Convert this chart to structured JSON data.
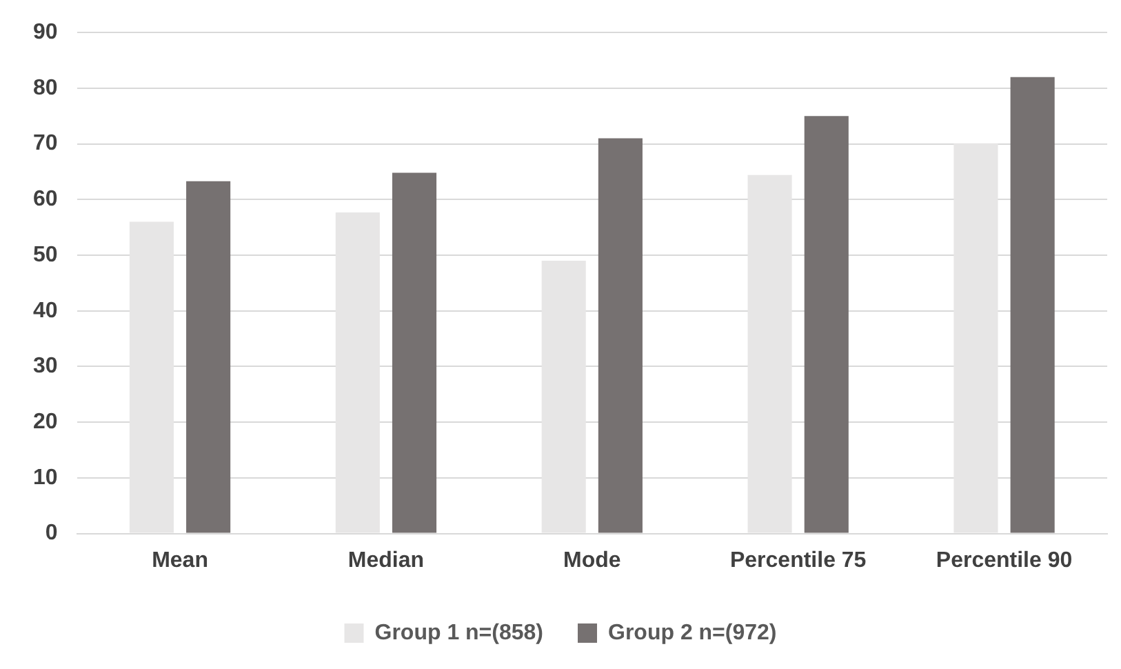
{
  "chart_data": {
    "type": "bar",
    "categories": [
      "Mean",
      "Median",
      "Mode",
      "Percentile 75",
      "Percentile 90"
    ],
    "series": [
      {
        "name": "Group 1 n=(858)",
        "color": "#e7e6e6",
        "values": [
          56,
          57.7,
          49,
          64.4,
          70.1
        ]
      },
      {
        "name": "Group 2 n=(972)",
        "color": "#767171",
        "values": [
          63.3,
          64.8,
          71,
          75,
          82
        ]
      }
    ],
    "ylim": [
      0,
      90
    ],
    "yticks": [
      0,
      10,
      20,
      30,
      40,
      50,
      60,
      70,
      80,
      90
    ],
    "grid": "y",
    "legend": "bottom"
  }
}
